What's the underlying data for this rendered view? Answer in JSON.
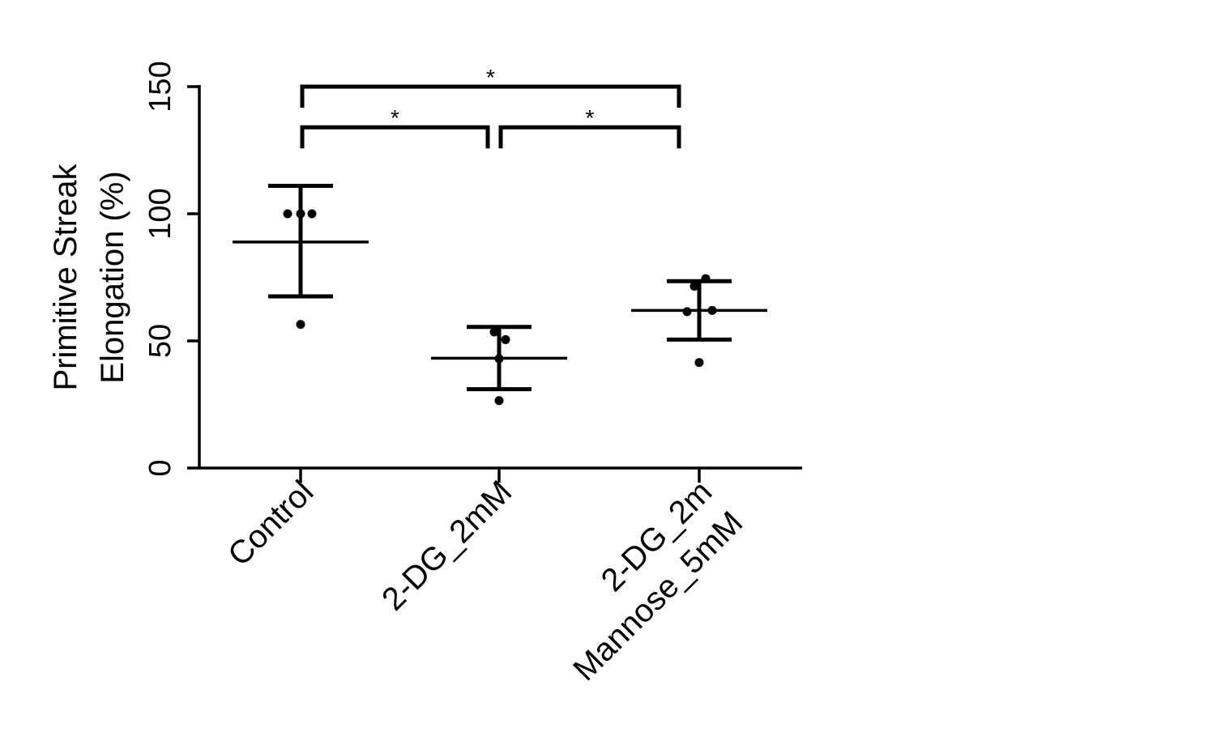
{
  "chart_data": {
    "type": "scatter",
    "xlabel": "",
    "ylabel": [
      "Primitive Streak",
      "Elongation (%)"
    ],
    "ylim": [
      0,
      150
    ],
    "yticks": [
      0,
      50,
      100,
      150
    ],
    "grid": false,
    "categories": [
      {
        "label": [
          "Control"
        ]
      },
      {
        "label": [
          "2-DG_2mM"
        ]
      },
      {
        "label": [
          "2-DG_2m",
          "Mannose_5mM"
        ]
      }
    ],
    "groups": [
      {
        "points": [
          100,
          100,
          100,
          56.5
        ],
        "mean": 88.9,
        "upper": 111,
        "lower": 67.5
      },
      {
        "points": [
          53.5,
          50.5,
          43,
          26.5
        ],
        "mean": 43.2,
        "upper": 55.5,
        "lower": 31
      },
      {
        "points": [
          74.5,
          71.5,
          62,
          61.5,
          41.5
        ],
        "mean": 62,
        "upper": 73.5,
        "lower": 50.5
      }
    ],
    "significance": [
      {
        "from": 0,
        "to": 2,
        "level": 150,
        "label": "*"
      },
      {
        "from": 0,
        "to": 1,
        "level": 134,
        "label": "*"
      },
      {
        "from": 1,
        "to": 2,
        "level": 134,
        "label": "*"
      }
    ]
  }
}
